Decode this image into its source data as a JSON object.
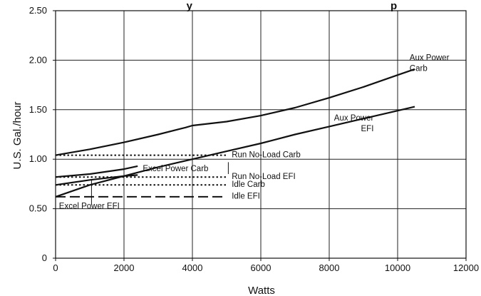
{
  "chart_data": {
    "type": "line",
    "title": "y",
    "title_right": "p",
    "xlabel": "Watts",
    "ylabel": "U.S. Gal./hour",
    "xlim": [
      0,
      12000
    ],
    "ylim": [
      0,
      2.5
    ],
    "x_ticks": [
      {
        "value": 0,
        "label": "0"
      },
      {
        "value": 2000,
        "label": "2000"
      },
      {
        "value": 4000,
        "label": "4000"
      },
      {
        "value": 6000,
        "label": "6000"
      },
      {
        "value": 8000,
        "label": "8000"
      },
      {
        "value": 10000,
        "label": "10000"
      },
      {
        "value": 12000,
        "label": "12000"
      }
    ],
    "y_ticks": [
      {
        "value": 0,
        "label": "0"
      },
      {
        "value": 0.5,
        "label": "0.50"
      },
      {
        "value": 1.0,
        "label": "1.00"
      },
      {
        "value": 1.5,
        "label": "1.50"
      },
      {
        "value": 2.0,
        "label": "2.00"
      },
      {
        "value": 2.5,
        "label": "2.50"
      }
    ],
    "grid": true,
    "series": [
      {
        "name": "Aux Power Carb",
        "style": "solid",
        "points": [
          [
            0,
            1.04
          ],
          [
            1000,
            1.1
          ],
          [
            2000,
            1.17
          ],
          [
            3000,
            1.25
          ],
          [
            3800,
            1.32
          ],
          [
            4000,
            1.34
          ],
          [
            5000,
            1.38
          ],
          [
            6000,
            1.44
          ],
          [
            7000,
            1.52
          ],
          [
            8000,
            1.62
          ],
          [
            9000,
            1.73
          ],
          [
            10000,
            1.85
          ],
          [
            10500,
            1.91
          ]
        ]
      },
      {
        "name": "Aux Power EFI",
        "style": "solid",
        "points": [
          [
            0,
            0.62
          ],
          [
            1000,
            0.74
          ],
          [
            2000,
            0.83
          ],
          [
            3000,
            0.92
          ],
          [
            4000,
            1.0
          ],
          [
            5000,
            1.08
          ],
          [
            6000,
            1.16
          ],
          [
            7000,
            1.25
          ],
          [
            8000,
            1.33
          ],
          [
            9000,
            1.41
          ],
          [
            10000,
            1.49
          ],
          [
            10500,
            1.53
          ]
        ]
      },
      {
        "name": "Excel Power Carb",
        "style": "solid",
        "points": [
          [
            0,
            0.82
          ],
          [
            1000,
            0.85
          ],
          [
            2000,
            0.9
          ],
          [
            2400,
            0.93
          ]
        ]
      },
      {
        "name": "Excel Power EFI",
        "style": "solid",
        "points": [
          [
            0,
            0.74
          ],
          [
            1000,
            0.79
          ],
          [
            2000,
            0.83
          ],
          [
            2400,
            0.84
          ]
        ]
      },
      {
        "name": "Run No-Load Carb",
        "style": "dotted",
        "points": [
          [
            0,
            1.04
          ],
          [
            5000,
            1.04
          ]
        ]
      },
      {
        "name": "Run No-Load EFI",
        "style": "dotted",
        "points": [
          [
            0,
            0.82
          ],
          [
            5000,
            0.82
          ]
        ]
      },
      {
        "name": "Idle Carb",
        "style": "dotted",
        "points": [
          [
            0,
            0.74
          ],
          [
            5000,
            0.74
          ]
        ]
      },
      {
        "name": "Idle EFI",
        "style": "dashed",
        "points": [
          [
            0,
            0.62
          ],
          [
            5000,
            0.62
          ]
        ]
      }
    ],
    "annotations": [
      {
        "id": "aux-carb",
        "lines": [
          "Aux Power",
          "Carb"
        ],
        "x": 10350,
        "y": 2.0,
        "anchor": "start"
      },
      {
        "id": "aux-efi",
        "lines": [
          "Aux Power",
          "EFI"
        ],
        "x": 9300,
        "y": 1.39,
        "anchor": "end"
      },
      {
        "id": "run-noload-carb",
        "lines": [
          "Run No-Load Carb"
        ],
        "x": 5150,
        "y": 1.02,
        "anchor": "start"
      },
      {
        "id": "excel-carb",
        "lines": [
          "Excel Power Carb"
        ],
        "x": 2550,
        "y": 0.88,
        "anchor": "start"
      },
      {
        "id": "run-noload-efi",
        "lines": [
          "Run No-Load EFI"
        ],
        "x": 5150,
        "y": 0.8,
        "anchor": "start"
      },
      {
        "id": "idle-carb",
        "lines": [
          "Idle Carb"
        ],
        "x": 5150,
        "y": 0.72,
        "anchor": "start"
      },
      {
        "id": "idle-efi",
        "lines": [
          "Idle EFI"
        ],
        "x": 5150,
        "y": 0.6,
        "anchor": "start"
      },
      {
        "id": "excel-efi",
        "lines": [
          "Excel Power EFI"
        ],
        "x": 100,
        "y": 0.5,
        "anchor": "start"
      }
    ],
    "leaders": [
      {
        "id": "leader-run-noload",
        "from": [
          5050,
          0.97
        ],
        "to": [
          5050,
          0.85
        ]
      },
      {
        "id": "leader-excel-efi",
        "from": [
          1050,
          0.54
        ],
        "to": [
          1050,
          0.79
        ]
      }
    ]
  }
}
